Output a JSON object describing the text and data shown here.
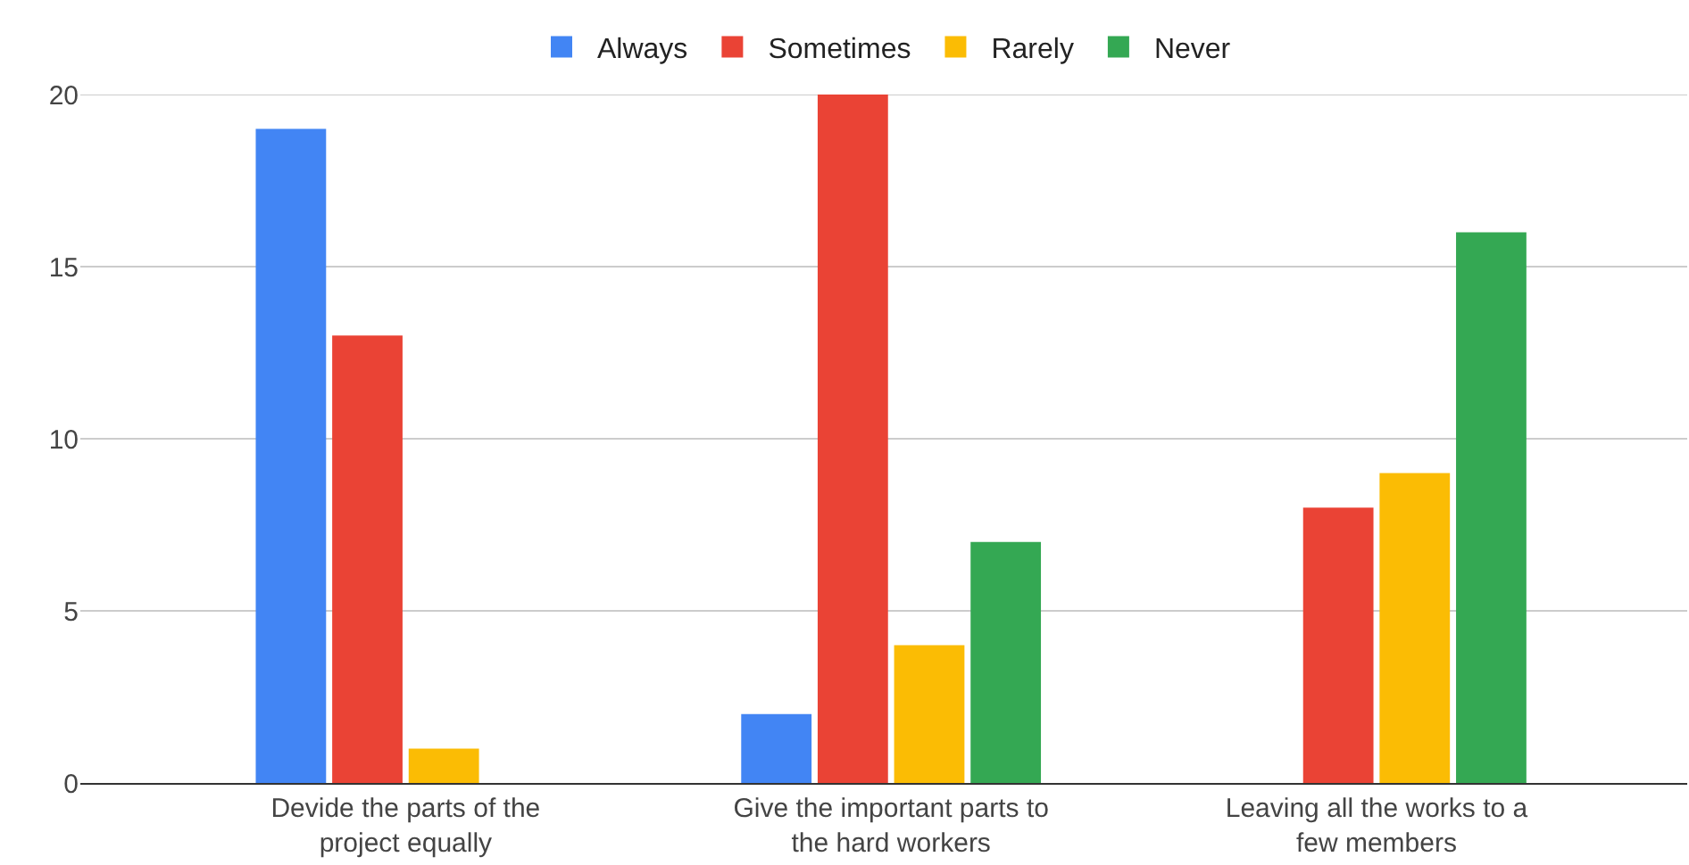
{
  "chart_data": {
    "type": "bar",
    "categories": [
      "Devide the parts of the project equally",
      "Give the important parts to the hard workers",
      "Leaving all the works to a few members"
    ],
    "series": [
      {
        "name": "Always",
        "color": "#4285f4",
        "values": [
          19,
          2,
          null
        ]
      },
      {
        "name": "Sometimes",
        "color": "#ea4335",
        "values": [
          13,
          20,
          8
        ]
      },
      {
        "name": "Rarely",
        "color": "#fbbc04",
        "values": [
          1,
          4,
          9
        ]
      },
      {
        "name": "Never",
        "color": "#34a853",
        "values": [
          null,
          7,
          16
        ]
      }
    ],
    "ylim": [
      0,
      20
    ],
    "yticks": [
      0,
      5,
      10,
      15,
      20
    ],
    "grid": "y",
    "legend": "top"
  }
}
